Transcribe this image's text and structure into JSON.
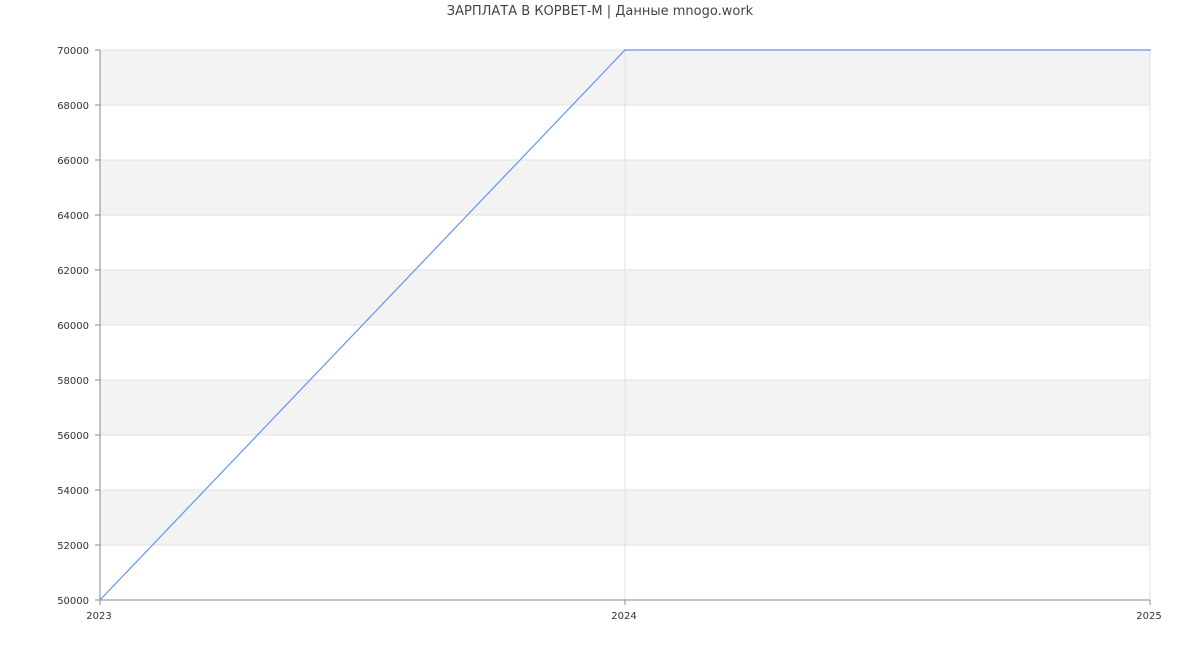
{
  "chart_data": {
    "type": "line",
    "title": "ЗАРПЛАТА В  КОРВЕТ-М | Данные mnogo.work",
    "xlabel": "",
    "ylabel": "",
    "x": [
      2023,
      2024,
      2025
    ],
    "series": [
      {
        "values": [
          50000,
          70000,
          70000
        ]
      }
    ],
    "xlim": [
      2023,
      2025
    ],
    "ylim": [
      50000,
      70000
    ],
    "x_ticks": [
      "2023",
      "2024",
      "2025"
    ],
    "y_ticks": [
      "50000",
      "52000",
      "54000",
      "56000",
      "58000",
      "60000",
      "62000",
      "64000",
      "66000",
      "68000",
      "70000"
    ],
    "grid": true,
    "colors": {
      "line": "#6495ED",
      "band": "#F3F3F3",
      "grid": "#E0E0E0",
      "axis": "#888888"
    }
  }
}
